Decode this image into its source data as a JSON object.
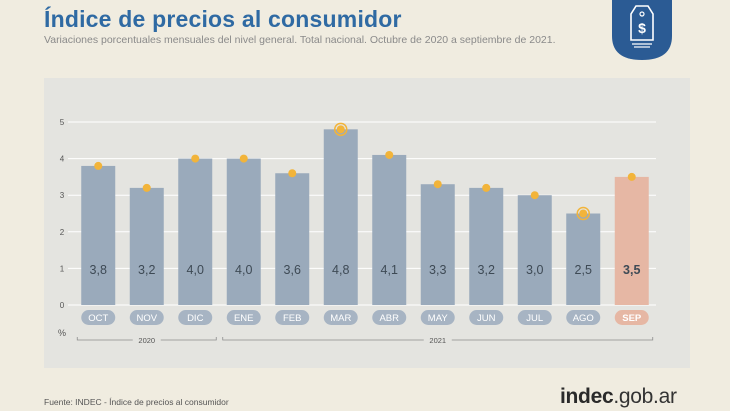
{
  "title": "Índice de precios al consumidor",
  "subtitle": "Variaciones porcentuales mensuales del nivel general. Total nacional. Octubre de 2020 a septiembre de 2021.",
  "source": "Fuente: INDEC - Índice de precios al consumidor",
  "brand": {
    "main": "indec",
    "suffix": ".gob.ar"
  },
  "badge_icon": "price-tag-dollar-icon",
  "colors": {
    "bar": "#9aaabb",
    "highlight_bar": "#e6b7a4",
    "marker": "#f2b43a",
    "tick_bg": "#a7b4c3",
    "highlight_tick_bg": "#e6b7a4",
    "value_text": "#3e4a55",
    "accent_title": "#2f6aa3"
  },
  "chart_data": {
    "type": "bar",
    "categories": [
      "OCT",
      "NOV",
      "DIC",
      "ENE",
      "FEB",
      "MAR",
      "ABR",
      "MAY",
      "JUN",
      "JUL",
      "AGO",
      "SEP"
    ],
    "values": [
      3.8,
      3.2,
      4.0,
      4.0,
      3.6,
      4.8,
      4.1,
      3.3,
      3.2,
      3.0,
      2.5,
      3.5
    ],
    "value_labels": [
      "3,8",
      "3,2",
      "4,0",
      "4,0",
      "3,6",
      "4,8",
      "4,1",
      "3,3",
      "3,2",
      "3,0",
      "2,5",
      "3,5"
    ],
    "highlight_index": 11,
    "ring_marker_indices": [
      5,
      10
    ],
    "yticks": [
      "0",
      "1",
      "2",
      "3",
      "4",
      "5"
    ],
    "ylim": [
      0,
      5
    ],
    "unit_label": "%",
    "year_groups": [
      {
        "label": "2020",
        "from": 0,
        "to": 2
      },
      {
        "label": "2021",
        "from": 3,
        "to": 11
      }
    ],
    "grid": true
  }
}
